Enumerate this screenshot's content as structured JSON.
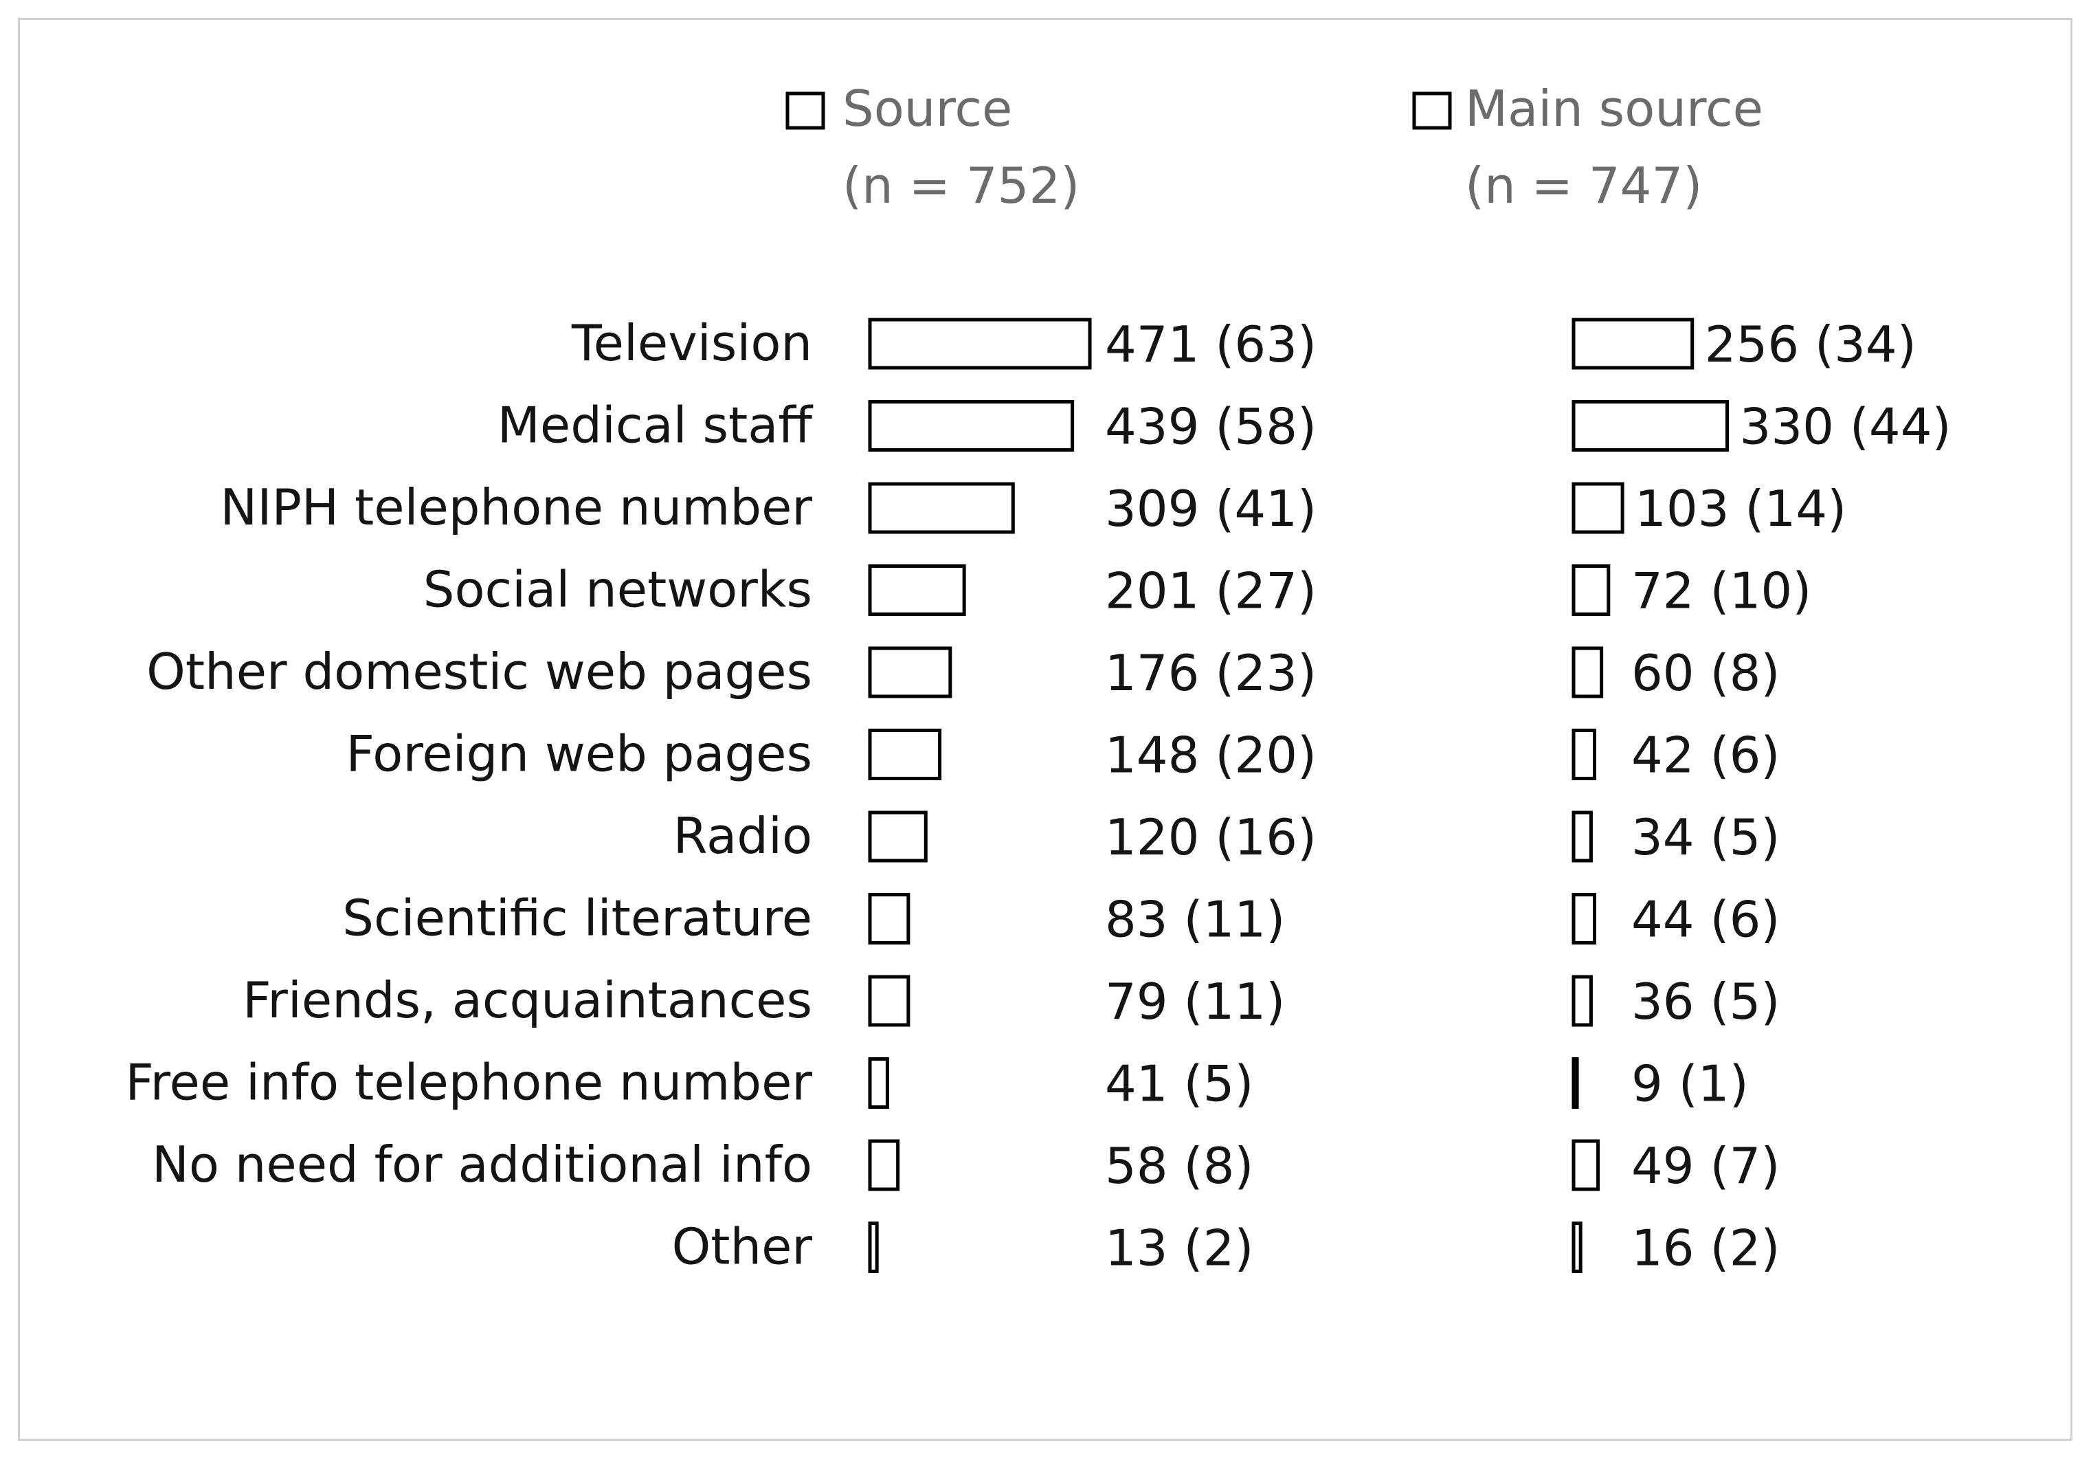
{
  "chart_data": {
    "type": "bar",
    "orientation": "horizontal",
    "categories": [
      "Television",
      "Medical staff",
      "NIPH telephone number",
      "Social networks",
      "Other domestic web pages",
      "Foreign web pages",
      "Radio",
      "Scientific literature",
      "Friends, acquaintances",
      "Free info telephone number",
      "No need for additional info",
      "Other"
    ],
    "series": [
      {
        "name": "Source",
        "n_label": "(n = 752)",
        "values": [
          471,
          439,
          309,
          201,
          176,
          148,
          120,
          83,
          79,
          41,
          58,
          13
        ],
        "percents": [
          63,
          58,
          41,
          27,
          23,
          20,
          16,
          11,
          11,
          5,
          8,
          2
        ],
        "labels": [
          "471 (63)",
          "439 (58)",
          "309 (41)",
          "201 (27)",
          "176 (23)",
          "148 (20)",
          "120 (16)",
          "83 (11)",
          "79 (11)",
          "41 (5)",
          "58 (8)",
          "13 (2)"
        ]
      },
      {
        "name": "Main source",
        "n_label": "(n = 747)",
        "values": [
          256,
          330,
          103,
          72,
          60,
          42,
          34,
          44,
          36,
          9,
          49,
          16
        ],
        "percents": [
          34,
          44,
          14,
          10,
          8,
          6,
          5,
          6,
          5,
          1,
          7,
          2
        ],
        "labels": [
          "256 (34)",
          "330 (44)",
          "103 (14)",
          "72 (10)",
          "60 (8)",
          "42 (6)",
          "34 (5)",
          "44 (6)",
          "36 (5)",
          "9 (1)",
          "49 (7)",
          "16 (2)"
        ]
      }
    ],
    "bar_fill": "#ffffff",
    "bar_stroke": "#000000",
    "legend_color": "#6b6b6b",
    "legend_position": "top",
    "grid": false
  }
}
